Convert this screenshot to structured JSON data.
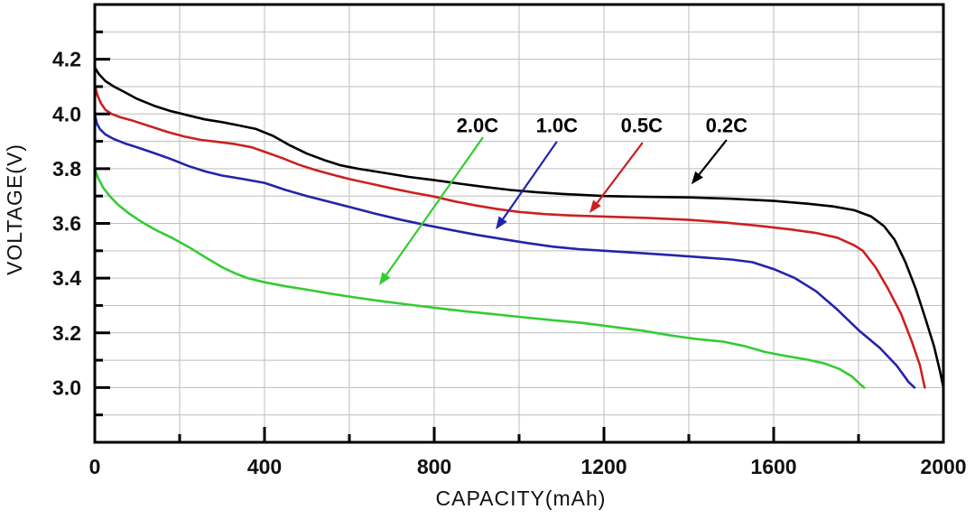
{
  "page": {
    "background": "#ffffff"
  },
  "chart_data": {
    "type": "line",
    "title": "",
    "xlabel": "CAPACITY(mAh)",
    "ylabel": "VOLTAGE(V)",
    "xlim": [
      0,
      2000
    ],
    "ylim": [
      2.8,
      4.4
    ],
    "grid_on": true,
    "grid_color": "#bdbdbd",
    "axis_color": "#000000",
    "x_major_ticks": [
      400,
      800,
      1200,
      1600,
      2000
    ],
    "x_tick_label_values": [
      0,
      400,
      800,
      1200,
      1600,
      2000
    ],
    "x_tick_labels": [
      "0",
      "400",
      "800",
      "1200",
      "1600",
      "2000"
    ],
    "x_minor_ticks": [
      200,
      600,
      1000,
      1400,
      1800
    ],
    "y_major_ticks": [
      3.0,
      3.2,
      3.4,
      3.6,
      3.8,
      4.0,
      4.2
    ],
    "y_tick_labels": [
      "3.0",
      "3.2",
      "3.4",
      "3.6",
      "3.8",
      "4.0",
      "4.2"
    ],
    "y_minor_ticks": [
      2.9,
      3.1,
      3.3,
      3.5,
      3.7,
      3.9,
      4.1,
      4.3
    ],
    "grid_x_lines": [
      200,
      400,
      600,
      800,
      1000,
      1200,
      1400,
      1600,
      1800
    ],
    "grid_y_lines": [
      2.9,
      3.0,
      3.1,
      3.2,
      3.3,
      3.4,
      3.5,
      3.6,
      3.7,
      3.8,
      3.9,
      4.0,
      4.1,
      4.2,
      4.3
    ],
    "legend_position": "inline-arrow-annotations",
    "series": [
      {
        "name": "2.0C",
        "color": "#33cc33",
        "points": [
          [
            0,
            3.8
          ],
          [
            8,
            3.765
          ],
          [
            20,
            3.73
          ],
          [
            35,
            3.7
          ],
          [
            55,
            3.668
          ],
          [
            80,
            3.637
          ],
          [
            110,
            3.606
          ],
          [
            145,
            3.575
          ],
          [
            185,
            3.545
          ],
          [
            225,
            3.51
          ],
          [
            265,
            3.472
          ],
          [
            300,
            3.44
          ],
          [
            330,
            3.418
          ],
          [
            360,
            3.4
          ],
          [
            400,
            3.385
          ],
          [
            450,
            3.37
          ],
          [
            500,
            3.358
          ],
          [
            560,
            3.342
          ],
          [
            620,
            3.328
          ],
          [
            680,
            3.315
          ],
          [
            740,
            3.303
          ],
          [
            800,
            3.292
          ],
          [
            870,
            3.279
          ],
          [
            940,
            3.268
          ],
          [
            1010,
            3.257
          ],
          [
            1080,
            3.246
          ],
          [
            1150,
            3.236
          ],
          [
            1220,
            3.222
          ],
          [
            1290,
            3.208
          ],
          [
            1360,
            3.19
          ],
          [
            1420,
            3.177
          ],
          [
            1480,
            3.168
          ],
          [
            1530,
            3.152
          ],
          [
            1580,
            3.13
          ],
          [
            1630,
            3.115
          ],
          [
            1680,
            3.102
          ],
          [
            1720,
            3.088
          ],
          [
            1755,
            3.068
          ],
          [
            1785,
            3.04
          ],
          [
            1805,
            3.01
          ],
          [
            1813,
            3.0
          ]
        ]
      },
      {
        "name": "1.0C",
        "color": "#2323aa",
        "points": [
          [
            0,
            4.0
          ],
          [
            5,
            3.965
          ],
          [
            12,
            3.945
          ],
          [
            25,
            3.925
          ],
          [
            45,
            3.908
          ],
          [
            70,
            3.893
          ],
          [
            100,
            3.878
          ],
          [
            140,
            3.857
          ],
          [
            180,
            3.835
          ],
          [
            220,
            3.81
          ],
          [
            260,
            3.79
          ],
          [
            300,
            3.775
          ],
          [
            350,
            3.762
          ],
          [
            400,
            3.748
          ],
          [
            450,
            3.722
          ],
          [
            500,
            3.7
          ],
          [
            550,
            3.68
          ],
          [
            600,
            3.66
          ],
          [
            660,
            3.636
          ],
          [
            720,
            3.614
          ],
          [
            780,
            3.594
          ],
          [
            840,
            3.576
          ],
          [
            900,
            3.558
          ],
          [
            960,
            3.543
          ],
          [
            1020,
            3.528
          ],
          [
            1080,
            3.515
          ],
          [
            1140,
            3.506
          ],
          [
            1200,
            3.5
          ],
          [
            1280,
            3.492
          ],
          [
            1360,
            3.484
          ],
          [
            1440,
            3.475
          ],
          [
            1500,
            3.468
          ],
          [
            1550,
            3.458
          ],
          [
            1600,
            3.433
          ],
          [
            1650,
            3.4
          ],
          [
            1700,
            3.352
          ],
          [
            1750,
            3.285
          ],
          [
            1800,
            3.21
          ],
          [
            1850,
            3.145
          ],
          [
            1890,
            3.08
          ],
          [
            1918,
            3.02
          ],
          [
            1932,
            3.0
          ]
        ]
      },
      {
        "name": "0.5C",
        "color": "#cc2020",
        "points": [
          [
            0,
            4.105
          ],
          [
            6,
            4.07
          ],
          [
            14,
            4.04
          ],
          [
            25,
            4.015
          ],
          [
            40,
            4.0
          ],
          [
            60,
            3.988
          ],
          [
            90,
            3.975
          ],
          [
            130,
            3.955
          ],
          [
            170,
            3.935
          ],
          [
            210,
            3.918
          ],
          [
            250,
            3.905
          ],
          [
            290,
            3.898
          ],
          [
            330,
            3.89
          ],
          [
            370,
            3.878
          ],
          [
            400,
            3.862
          ],
          [
            440,
            3.84
          ],
          [
            480,
            3.815
          ],
          [
            520,
            3.795
          ],
          [
            560,
            3.778
          ],
          [
            600,
            3.762
          ],
          [
            650,
            3.745
          ],
          [
            700,
            3.728
          ],
          [
            750,
            3.712
          ],
          [
            800,
            3.698
          ],
          [
            850,
            3.68
          ],
          [
            900,
            3.665
          ],
          [
            950,
            3.652
          ],
          [
            1000,
            3.642
          ],
          [
            1060,
            3.634
          ],
          [
            1120,
            3.629
          ],
          [
            1200,
            3.625
          ],
          [
            1300,
            3.62
          ],
          [
            1400,
            3.613
          ],
          [
            1480,
            3.604
          ],
          [
            1560,
            3.592
          ],
          [
            1640,
            3.578
          ],
          [
            1700,
            3.565
          ],
          [
            1750,
            3.548
          ],
          [
            1790,
            3.52
          ],
          [
            1810,
            3.5
          ],
          [
            1840,
            3.44
          ],
          [
            1870,
            3.36
          ],
          [
            1900,
            3.27
          ],
          [
            1925,
            3.17
          ],
          [
            1945,
            3.08
          ],
          [
            1956,
            3.0
          ]
        ]
      },
      {
        "name": "0.2C",
        "color": "#000000",
        "points": [
          [
            0,
            4.17
          ],
          [
            10,
            4.145
          ],
          [
            25,
            4.12
          ],
          [
            45,
            4.1
          ],
          [
            70,
            4.08
          ],
          [
            100,
            4.055
          ],
          [
            140,
            4.03
          ],
          [
            180,
            4.01
          ],
          [
            220,
            3.995
          ],
          [
            260,
            3.98
          ],
          [
            300,
            3.97
          ],
          [
            340,
            3.958
          ],
          [
            380,
            3.945
          ],
          [
            420,
            3.92
          ],
          [
            460,
            3.885
          ],
          [
            500,
            3.855
          ],
          [
            540,
            3.832
          ],
          [
            580,
            3.812
          ],
          [
            620,
            3.8
          ],
          [
            680,
            3.785
          ],
          [
            740,
            3.77
          ],
          [
            800,
            3.758
          ],
          [
            860,
            3.745
          ],
          [
            920,
            3.733
          ],
          [
            980,
            3.722
          ],
          [
            1040,
            3.714
          ],
          [
            1100,
            3.708
          ],
          [
            1200,
            3.7
          ],
          [
            1300,
            3.697
          ],
          [
            1400,
            3.695
          ],
          [
            1500,
            3.69
          ],
          [
            1600,
            3.682
          ],
          [
            1680,
            3.672
          ],
          [
            1740,
            3.662
          ],
          [
            1790,
            3.648
          ],
          [
            1830,
            3.625
          ],
          [
            1860,
            3.59
          ],
          [
            1885,
            3.54
          ],
          [
            1910,
            3.46
          ],
          [
            1935,
            3.36
          ],
          [
            1958,
            3.25
          ],
          [
            1978,
            3.15
          ],
          [
            1992,
            3.06
          ],
          [
            2000,
            3.0
          ]
        ]
      }
    ],
    "annotations": [
      {
        "label": "2.0C",
        "color": "#33cc33",
        "label_x": 902,
        "label_y": 3.96,
        "arrow_from": [
          915,
          3.915
        ],
        "arrow_to": [
          670,
          3.374
        ]
      },
      {
        "label": "1.0C",
        "color": "#2323aa",
        "label_x": 1089,
        "label_y": 3.96,
        "arrow_from": [
          1089,
          3.899
        ],
        "arrow_to": [
          945,
          3.578
        ]
      },
      {
        "label": "0.5C",
        "color": "#cc2020",
        "label_x": 1289,
        "label_y": 3.96,
        "arrow_from": [
          1291,
          3.895
        ],
        "arrow_to": [
          1166,
          3.638
        ]
      },
      {
        "label": "0.2C",
        "color": "#000000",
        "label_x": 1489,
        "label_y": 3.96,
        "arrow_from": [
          1489,
          3.905
        ],
        "arrow_to": [
          1406,
          3.743
        ]
      }
    ]
  }
}
